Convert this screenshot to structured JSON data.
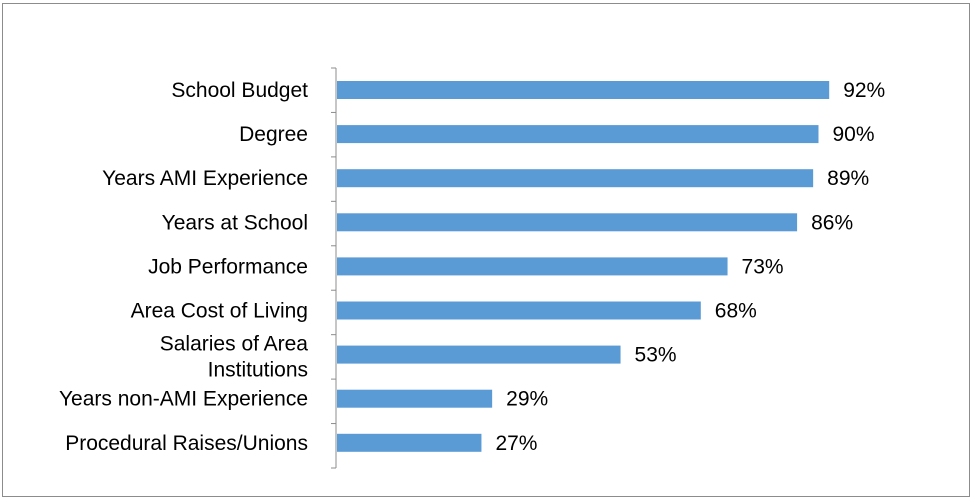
{
  "chart_data": {
    "type": "bar",
    "orientation": "horizontal",
    "categories": [
      "School Budget",
      "Degree",
      "Years AMI Experience",
      "Years at School",
      "Job Performance",
      "Area Cost of Living",
      "Salaries of Area Institutions",
      "Years non-AMI Experience",
      "Procedural Raises/Unions"
    ],
    "values": [
      92,
      90,
      89,
      86,
      73,
      68,
      53,
      29,
      27
    ],
    "value_labels": [
      "92%",
      "90%",
      "89%",
      "86%",
      "73%",
      "68%",
      "53%",
      "29%",
      "27%"
    ],
    "title": "",
    "xlabel": "",
    "ylabel": "",
    "xlim": [
      0,
      100
    ],
    "grid": false,
    "legend": "none",
    "colors": {
      "bar": "#5b9bd5",
      "axis": "#8c8c8c",
      "frame": "#8c8c8c"
    }
  }
}
